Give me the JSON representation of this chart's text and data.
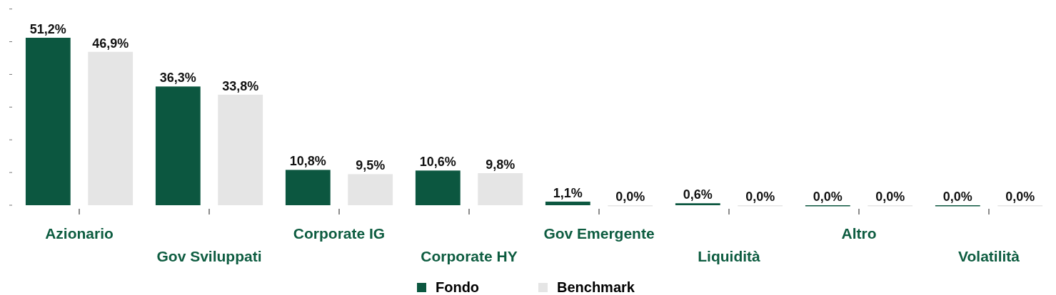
{
  "chart_data": {
    "type": "bar",
    "categories": [
      "Azionario",
      "Gov Sviluppati",
      "Corporate IG",
      "Corporate HY",
      "Gov Emergente",
      "Liquidità",
      "Altro",
      "Volatilità"
    ],
    "series": [
      {
        "name": "Fondo",
        "color": "#0c5740",
        "values": [
          51.2,
          36.3,
          10.8,
          10.6,
          1.1,
          0.6,
          0.0,
          0.0
        ],
        "value_labels": [
          "51,2%",
          "36,3%",
          "10,8%",
          "10,6%",
          "1,1%",
          "0,6%",
          "0,0%",
          "0,0%"
        ]
      },
      {
        "name": "Benchmark",
        "color": "#e5e5e5",
        "values": [
          46.9,
          33.8,
          9.5,
          9.8,
          0.0,
          0.0,
          0.0,
          0.0
        ],
        "value_labels": [
          "46,9%",
          "33,8%",
          "9,5%",
          "9,8%",
          "0,0%",
          "0,0%",
          "0,0%",
          "0,0%"
        ]
      }
    ],
    "yticks": [
      {
        "value": 0,
        "label": null
      },
      {
        "value": 10,
        "label": null
      },
      {
        "value": 20,
        "label": null
      },
      {
        "value": 30,
        "label": null
      },
      {
        "value": 40,
        "label": null
      },
      {
        "value": 50,
        "label": null
      },
      {
        "value": 60,
        "label": null
      }
    ],
    "tick_labels": "x",
    "legend": "bottom"
  }
}
